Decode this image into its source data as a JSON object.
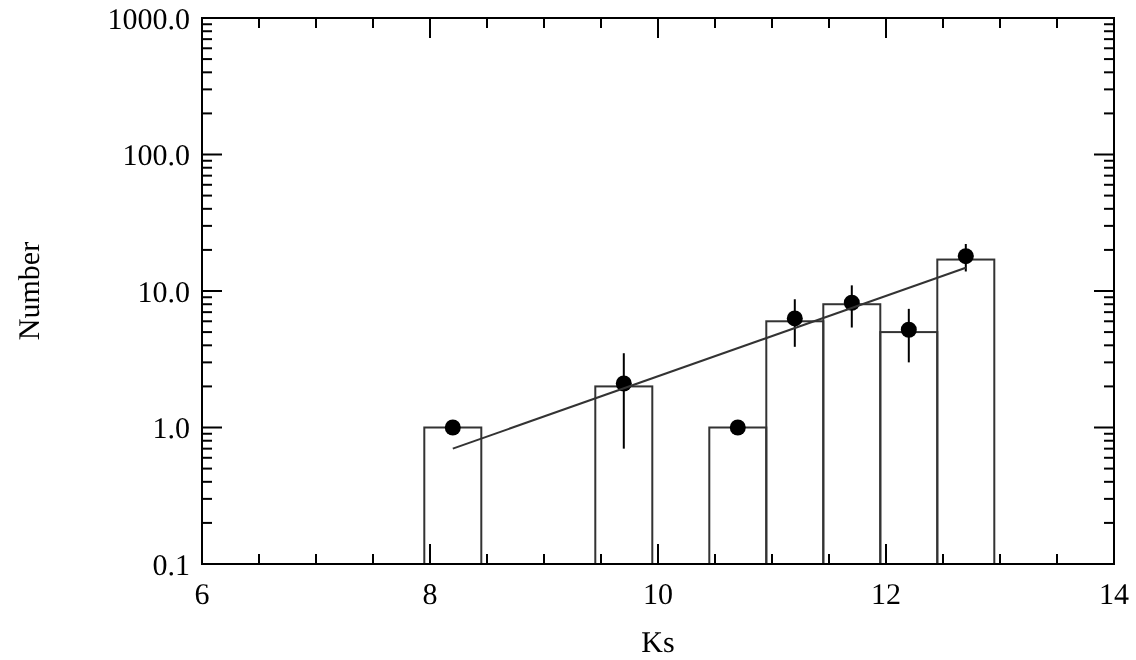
{
  "chart_data": {
    "type": "histogram",
    "xlabel": "Ks",
    "ylabel": "Number",
    "log": "y",
    "xlim": [
      6,
      14
    ],
    "ylim": [
      0.1,
      1000
    ],
    "xticks": [
      6,
      {
        "value": 6.5,
        "label": null
      },
      8,
      {
        "value": 7,
        "label": null
      },
      {
        "value": 7.5,
        "label": null
      },
      {
        "value": 8.5,
        "label": null
      },
      {
        "value": 9,
        "label": null
      },
      {
        "value": 9.5,
        "label": null
      },
      10,
      {
        "value": 10.5,
        "label": null
      },
      {
        "value": 11,
        "label": null
      },
      {
        "value": 11.5,
        "label": null
      },
      12,
      {
        "value": 12.5,
        "label": null
      },
      {
        "value": 13,
        "label": null
      },
      {
        "value": 13.5,
        "label": null
      },
      14
    ],
    "yticks": [
      {
        "value": 0.1,
        "label": "0.1"
      },
      {
        "value": 1,
        "label": "1.0"
      },
      {
        "value": 10,
        "label": "10.0"
      },
      {
        "value": 100,
        "label": "100.0"
      },
      {
        "value": 1000,
        "label": "1000.0"
      }
    ],
    "grid": false,
    "series": [
      {
        "color": "#333333",
        "bins": [
          7.95,
          8.45,
          8.95,
          9.45,
          9.95,
          10.45,
          10.95,
          11.45,
          11.95,
          12.45,
          12.95
        ],
        "values": [
          1,
          null,
          null,
          2,
          null,
          1,
          6,
          8,
          5,
          17
        ]
      },
      {
        "type": "scatter",
        "color": "#000000",
        "marker": "circle",
        "x": [
          8.2,
          9.7,
          10.7,
          11.2,
          11.7,
          12.2,
          12.7
        ],
        "values": [
          1,
          2.1,
          1,
          6.3,
          8.2,
          5.2,
          18
        ],
        "errors": [
          null,
          1.4,
          null,
          2.4,
          2.8,
          2.2,
          4.1
        ]
      },
      {
        "type": "line",
        "color": "#333333",
        "line_style": "solid",
        "marker": "none",
        "x": [
          8.2,
          12.7
        ],
        "values": [
          0.7,
          14.8
        ]
      }
    ]
  }
}
